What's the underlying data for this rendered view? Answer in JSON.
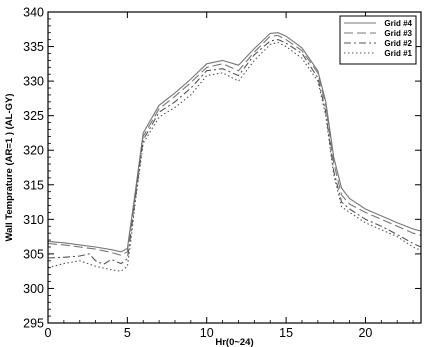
{
  "chart_data": {
    "type": "line",
    "xlabel": "Hr(0~24)",
    "ylabel": "Wall Temprature (AR=1   ) (AL-GY)",
    "xlim": [
      0,
      23.5
    ],
    "ylim": [
      295,
      340
    ],
    "x_ticks": [
      "0",
      "5",
      "10",
      "15",
      "20"
    ],
    "y_ticks": [
      "295",
      "300",
      "305",
      "310",
      "315",
      "320",
      "325",
      "330",
      "335",
      "340"
    ],
    "x_tick_values": [
      0,
      5,
      10,
      15,
      20
    ],
    "y_tick_values": [
      295,
      300,
      305,
      310,
      315,
      320,
      325,
      330,
      335,
      340
    ],
    "grid": false,
    "legend_position": "top-right",
    "series": [
      {
        "name": "Grid #4",
        "style": "solid",
        "color": "#777777",
        "points": [
          [
            0,
            306.8
          ],
          [
            1,
            306.6
          ],
          [
            2,
            306.3
          ],
          [
            3,
            306
          ],
          [
            4,
            305.6
          ],
          [
            4.6,
            305.3
          ],
          [
            5,
            305.8
          ],
          [
            5.2,
            309
          ],
          [
            5.5,
            314
          ],
          [
            6,
            322.5
          ],
          [
            7,
            326.5
          ],
          [
            8,
            328.3
          ],
          [
            9,
            330.3
          ],
          [
            10,
            332.5
          ],
          [
            11,
            333
          ],
          [
            12,
            332.3
          ],
          [
            13,
            334.7
          ],
          [
            14,
            336.9
          ],
          [
            14.5,
            337
          ],
          [
            15,
            336.5
          ],
          [
            16,
            334.8
          ],
          [
            17,
            331.5
          ],
          [
            17.5,
            327
          ],
          [
            18,
            319
          ],
          [
            18.5,
            314.5
          ],
          [
            19,
            313
          ],
          [
            20,
            311.5
          ],
          [
            21,
            310.5
          ],
          [
            22,
            309.5
          ],
          [
            23,
            308.6
          ],
          [
            23.5,
            308.3
          ]
        ]
      },
      {
        "name": "Grid #3",
        "style": "dashed",
        "color": "#777777",
        "points": [
          [
            0,
            306.5
          ],
          [
            1,
            306.3
          ],
          [
            2,
            306
          ],
          [
            3,
            305.7
          ],
          [
            4,
            305.2
          ],
          [
            4.6,
            304.8
          ],
          [
            5,
            305.3
          ],
          [
            5.2,
            308.5
          ],
          [
            5.5,
            313.5
          ],
          [
            6,
            322
          ],
          [
            7,
            326
          ],
          [
            8,
            327.8
          ],
          [
            9,
            329.8
          ],
          [
            10,
            332
          ],
          [
            11,
            332.5
          ],
          [
            12,
            331.5
          ],
          [
            13,
            334.2
          ],
          [
            14,
            336.5
          ],
          [
            14.5,
            336.6
          ],
          [
            15,
            336
          ],
          [
            16,
            334.4
          ],
          [
            17,
            331.2
          ],
          [
            17.5,
            326.5
          ],
          [
            18,
            318.2
          ],
          [
            18.5,
            313.5
          ],
          [
            19,
            312.2
          ],
          [
            20,
            311
          ],
          [
            21,
            310
          ],
          [
            22,
            309
          ],
          [
            23,
            308
          ],
          [
            23.5,
            307.7
          ]
        ]
      },
      {
        "name": "Grid #2",
        "style": "dashdot",
        "color": "#555555",
        "points": [
          [
            0,
            304.4
          ],
          [
            1,
            304.5
          ],
          [
            2,
            304.7
          ],
          [
            2.6,
            305
          ],
          [
            3,
            304
          ],
          [
            3.5,
            303.5
          ],
          [
            4,
            304.2
          ],
          [
            4.6,
            303.6
          ],
          [
            5,
            304.3
          ],
          [
            5.2,
            307.5
          ],
          [
            5.5,
            313
          ],
          [
            6,
            321.5
          ],
          [
            7,
            325.5
          ],
          [
            8,
            327
          ],
          [
            9,
            329
          ],
          [
            10,
            331.5
          ],
          [
            11,
            331.8
          ],
          [
            12,
            330.8
          ],
          [
            13,
            333.8
          ],
          [
            14,
            335.8
          ],
          [
            14.5,
            336
          ],
          [
            15,
            335.5
          ],
          [
            16,
            334
          ],
          [
            17,
            330.5
          ],
          [
            17.5,
            325.5
          ],
          [
            18,
            317
          ],
          [
            18.5,
            312.5
          ],
          [
            19,
            311.5
          ],
          [
            20,
            310
          ],
          [
            21,
            309
          ],
          [
            22,
            307.8
          ],
          [
            23,
            306.5
          ],
          [
            23.5,
            306
          ]
        ]
      },
      {
        "name": "Grid #1",
        "style": "dotted",
        "color": "#555555",
        "points": [
          [
            0,
            303
          ],
          [
            1,
            303.6
          ],
          [
            2,
            304
          ],
          [
            3,
            303.2
          ],
          [
            4,
            302.7
          ],
          [
            4.6,
            302.5
          ],
          [
            5,
            303.2
          ],
          [
            5.2,
            306.5
          ],
          [
            5.5,
            312.5
          ],
          [
            6,
            321
          ],
          [
            7,
            324.8
          ],
          [
            8,
            326.2
          ],
          [
            9,
            328
          ],
          [
            10,
            330.8
          ],
          [
            11,
            331.2
          ],
          [
            12,
            330
          ],
          [
            13,
            333
          ],
          [
            14,
            335.3
          ],
          [
            14.5,
            335.6
          ],
          [
            15,
            335
          ],
          [
            16,
            333.3
          ],
          [
            17,
            330
          ],
          [
            17.5,
            325
          ],
          [
            18,
            316.5
          ],
          [
            18.5,
            311.8
          ],
          [
            19,
            311
          ],
          [
            20,
            309.5
          ],
          [
            21,
            308.5
          ],
          [
            22,
            307.5
          ],
          [
            23,
            306
          ],
          [
            23.5,
            305.5
          ]
        ]
      }
    ]
  }
}
